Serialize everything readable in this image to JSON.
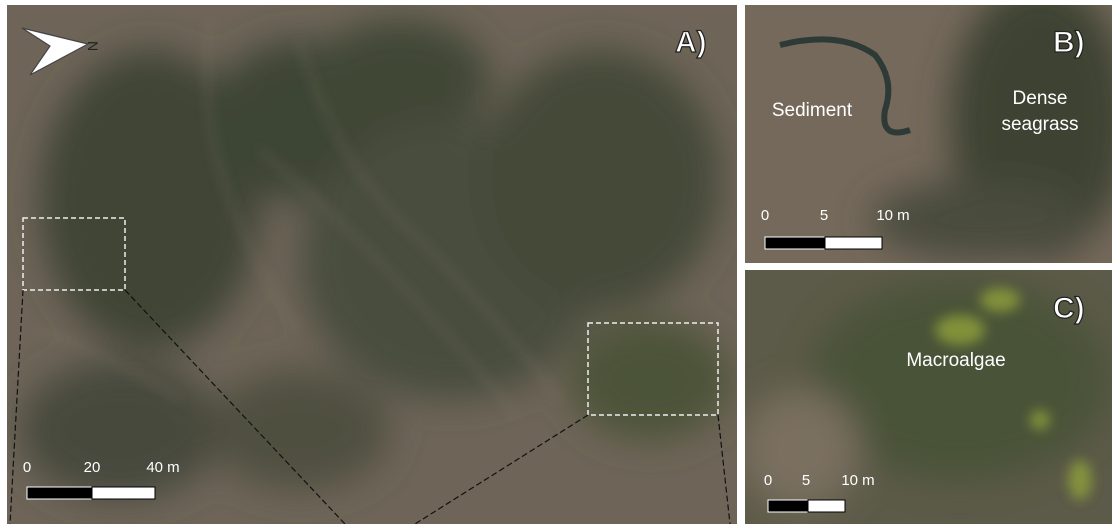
{
  "north_arrow": "N",
  "panels": [
    {
      "label": "A)",
      "scale_bar": {
        "labels": [
          "0",
          "20",
          "40 m"
        ]
      }
    },
    {
      "label": "B)",
      "annotations": [
        {
          "lines": [
            "Sediment"
          ]
        },
        {
          "lines": [
            "Dense",
            "seagrass"
          ]
        }
      ],
      "scale_bar": {
        "labels": [
          "0",
          "5",
          "10 m"
        ]
      }
    },
    {
      "label": "C)",
      "annotations": [
        {
          "lines": [
            "Macroalgae"
          ]
        }
      ],
      "scale_bar": {
        "labels": [
          "0",
          "5",
          "10 m"
        ]
      }
    }
  ]
}
